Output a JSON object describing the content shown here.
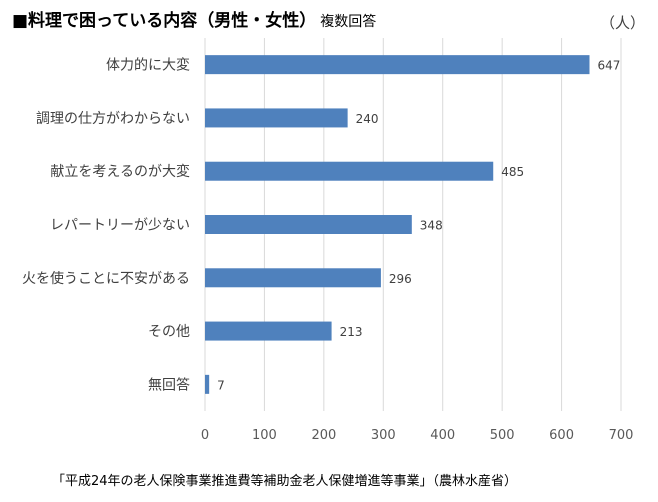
{
  "title": {
    "main": "■料理で困っている内容（男性・女性）",
    "sub": "複数回答"
  },
  "unit_label": "（人）",
  "source": "「平成24年の老人保険事業推進費等補助金老人保健増進等事業」（農林水産省）",
  "chart_data": {
    "type": "bar",
    "orientation": "horizontal",
    "categories": [
      "体力的に大変",
      "調理の仕方がわからない",
      "献立を考えるのが大変",
      "レパートリーが少ない",
      "火を使うことに不安がある",
      "その他",
      "無回答"
    ],
    "values": [
      647,
      240,
      485,
      348,
      296,
      213,
      7
    ],
    "xlim": [
      0,
      700
    ],
    "xticks": [
      0,
      100,
      200,
      300,
      400,
      500,
      600,
      700
    ],
    "grid": true,
    "bar_color": "#4f81bd"
  }
}
